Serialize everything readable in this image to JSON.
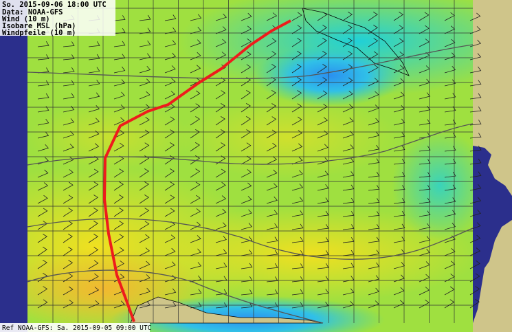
{
  "header": {
    "lines": [
      "So. 2015-09-06 18:00 UTC",
      "Data: NOAA-GFS",
      "Wind (10 m)",
      "Isobare MSL (hPa)",
      "Windpfeile (10 m)"
    ]
  },
  "footer": {
    "reference": "Ref NOAA-GFS: Sa. 2015-09-05 09:00 UTC"
  }
}
